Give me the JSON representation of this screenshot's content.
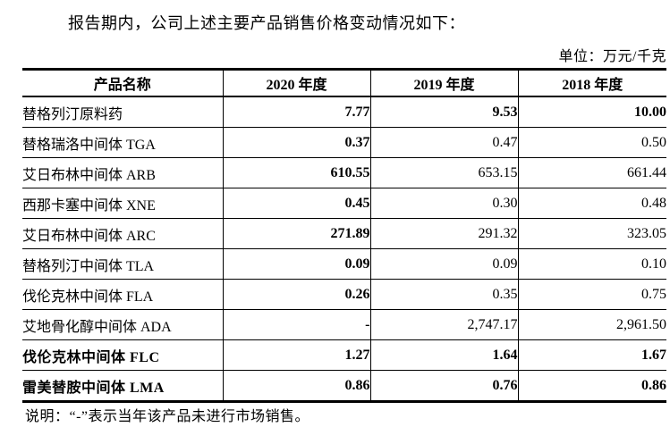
{
  "document": {
    "intro_text": "报告期内，公司上述主要产品销售价格变动情况如下：",
    "unit_label": "单位：万元/千克",
    "note_text": "说明：“-”表示当年该产品未进行市场销售。"
  },
  "table": {
    "columns": [
      "产品名称",
      "2020 年度",
      "2019 年度",
      "2018 年度"
    ],
    "rows": [
      {
        "name": "替格列汀原料药",
        "name_style": "normal",
        "values": [
          "7.77",
          "9.53",
          "10.00"
        ],
        "value_bold": [
          true,
          true,
          true
        ]
      },
      {
        "name": "替格瑞洛中间体 TGA",
        "name_style": "normal",
        "values": [
          "0.37",
          "0.47",
          "0.50"
        ],
        "value_bold": [
          true,
          false,
          false
        ]
      },
      {
        "name": "艾日布林中间体 ARB",
        "name_style": "normal",
        "values": [
          "610.55",
          "653.15",
          "661.44"
        ],
        "value_bold": [
          true,
          false,
          false
        ]
      },
      {
        "name": "西那卡塞中间体 XNE",
        "name_style": "normal",
        "values": [
          "0.45",
          "0.30",
          "0.48"
        ],
        "value_bold": [
          true,
          false,
          false
        ]
      },
      {
        "name": "艾日布林中间体 ARC",
        "name_style": "normal",
        "values": [
          "271.89",
          "291.32",
          "323.05"
        ],
        "value_bold": [
          true,
          false,
          false
        ]
      },
      {
        "name": "替格列汀中间体 TLA",
        "name_style": "normal",
        "values": [
          "0.09",
          "0.09",
          "0.10"
        ],
        "value_bold": [
          true,
          false,
          false
        ]
      },
      {
        "name": "伐伦克林中间体 FLA",
        "name_style": "normal",
        "values": [
          "0.26",
          "0.35",
          "0.75"
        ],
        "value_bold": [
          true,
          false,
          false
        ]
      },
      {
        "name": "艾地骨化醇中间体 ADA",
        "name_style": "normal",
        "values": [
          "-",
          "2,747.17",
          "2,961.50"
        ],
        "value_bold": [
          true,
          false,
          false
        ]
      },
      {
        "name": "伐伦克林中间体 FLC",
        "name_style": "kai-bold",
        "values": [
          "1.27",
          "1.64",
          "1.67"
        ],
        "value_bold": [
          true,
          true,
          true
        ]
      },
      {
        "name": "雷美替胺中间体 LMA",
        "name_style": "kai-bold",
        "values": [
          "0.86",
          "0.76",
          "0.86"
        ],
        "value_bold": [
          true,
          true,
          true
        ]
      }
    ]
  },
  "colors": {
    "text": "#000000",
    "border": "#000000",
    "background": "#ffffff"
  }
}
